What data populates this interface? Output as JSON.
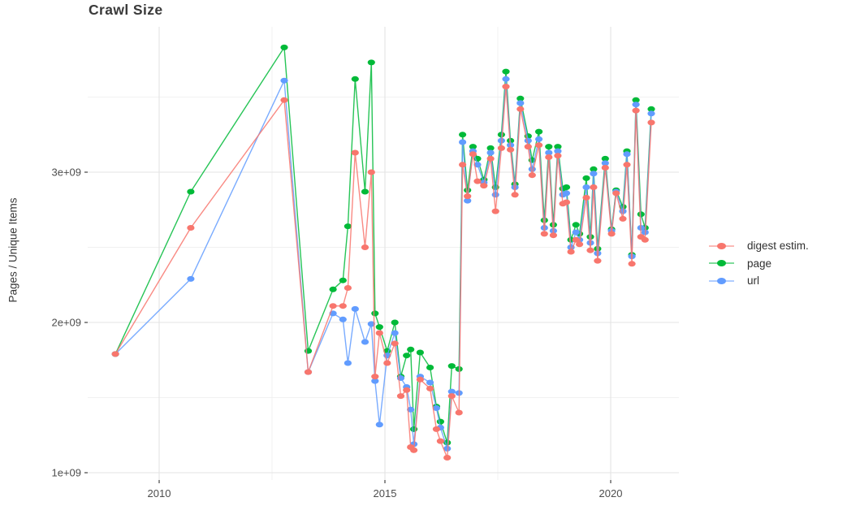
{
  "title": "Crawl Size",
  "axes": {
    "y_label": "Pages / Unique Items",
    "y_tick_labels": [
      "1e+09",
      "2e+09",
      "3e+09"
    ],
    "y_tick_values_billions": [
      1,
      2,
      3
    ],
    "y_minor_values_billions": [
      1.5,
      2.5,
      3.5
    ],
    "x_tick_labels": [
      "2010",
      "2015",
      "2020"
    ],
    "x_tick_values": [
      2010,
      2015,
      2020
    ],
    "x_minor_values": [
      2012.5,
      2017.5
    ]
  },
  "legend": {
    "position": "right",
    "items": [
      {
        "label": "digest estim.",
        "color": "#F8766D"
      },
      {
        "label": "page",
        "color": "#00BA38"
      },
      {
        "label": "url",
        "color": "#619CFF"
      }
    ]
  },
  "colors": {
    "background": "#ffffff",
    "grid_major": "#e3e3e3",
    "grid_minor": "#f1f1f1",
    "tick_mark": "#333333",
    "tick_text": "#4d4d4d",
    "title_text": "#3a3a3a",
    "digest": "#F8766D",
    "page": "#00BA38",
    "url": "#619CFF"
  },
  "chart_data": {
    "type": "line",
    "title": "Crawl Size",
    "xlabel": "",
    "ylabel": "Pages / Unique Items",
    "x_unit": "year (decimal)",
    "y_unit": "count, billions (1e9)",
    "xlim": [
      2008.4,
      2021.5
    ],
    "ylim_billions": [
      0.95,
      3.97
    ],
    "grid": true,
    "legend_position": "right",
    "marker": "ellipse-dot",
    "x": [
      2009.03,
      2010.7,
      2012.77,
      2013.3,
      2013.85,
      2014.07,
      2014.18,
      2014.34,
      2014.56,
      2014.7,
      2014.78,
      2014.88,
      2015.05,
      2015.22,
      2015.35,
      2015.48,
      2015.57,
      2015.64,
      2015.78,
      2016.0,
      2016.14,
      2016.23,
      2016.38,
      2016.48,
      2016.64,
      2016.72,
      2016.83,
      2016.95,
      2017.05,
      2017.19,
      2017.34,
      2017.45,
      2017.58,
      2017.68,
      2017.78,
      2017.88,
      2018.0,
      2018.17,
      2018.26,
      2018.41,
      2018.53,
      2018.63,
      2018.73,
      2018.83,
      2018.94,
      2019.02,
      2019.12,
      2019.23,
      2019.31,
      2019.46,
      2019.55,
      2019.62,
      2019.71,
      2019.88,
      2020.02,
      2020.12,
      2020.27,
      2020.36,
      2020.47,
      2020.56,
      2020.67,
      2020.76,
      2020.9
    ],
    "series": [
      {
        "name": "digest estim.",
        "color": "#F8766D",
        "values_billions": [
          1.79,
          2.63,
          3.48,
          1.67,
          2.11,
          2.11,
          2.23,
          3.13,
          2.5,
          3.0,
          1.64,
          1.93,
          1.73,
          1.86,
          1.51,
          1.55,
          1.17,
          1.15,
          1.62,
          1.56,
          1.29,
          1.21,
          1.1,
          1.51,
          1.4,
          3.05,
          2.84,
          3.12,
          2.94,
          2.91,
          3.09,
          2.74,
          3.16,
          3.57,
          3.15,
          2.85,
          3.42,
          3.17,
          2.98,
          3.18,
          2.59,
          3.1,
          2.58,
          3.11,
          2.79,
          2.8,
          2.47,
          2.55,
          2.52,
          2.83,
          2.48,
          2.9,
          2.41,
          3.03,
          2.59,
          2.86,
          2.69,
          3.05,
          2.39,
          3.41,
          2.57,
          2.55,
          3.33
        ]
      },
      {
        "name": "page",
        "color": "#00BA38",
        "values_billions": [
          1.79,
          2.87,
          3.83,
          1.81,
          2.22,
          2.28,
          2.64,
          3.62,
          2.87,
          3.73,
          2.06,
          1.97,
          1.81,
          2.0,
          1.64,
          1.78,
          1.82,
          1.29,
          1.8,
          1.7,
          1.44,
          1.34,
          1.2,
          1.71,
          1.69,
          3.25,
          2.88,
          3.17,
          3.09,
          2.95,
          3.16,
          2.9,
          3.25,
          3.67,
          3.21,
          2.92,
          3.49,
          3.24,
          3.08,
          3.27,
          2.68,
          3.17,
          2.65,
          3.17,
          2.89,
          2.9,
          2.55,
          2.65,
          2.59,
          2.96,
          2.57,
          3.02,
          2.49,
          3.09,
          2.62,
          2.88,
          2.77,
          3.14,
          2.45,
          3.48,
          2.72,
          2.63,
          3.42
        ]
      },
      {
        "name": "url",
        "color": "#619CFF",
        "values_billions": [
          1.79,
          2.29,
          3.61,
          1.67,
          2.06,
          2.02,
          1.73,
          2.09,
          1.87,
          1.99,
          1.61,
          1.32,
          1.78,
          1.93,
          1.63,
          1.57,
          1.42,
          1.19,
          1.64,
          1.6,
          1.43,
          1.3,
          1.16,
          1.54,
          1.53,
          3.2,
          2.81,
          3.14,
          3.05,
          2.93,
          3.13,
          2.85,
          3.21,
          3.62,
          3.18,
          2.9,
          3.46,
          3.21,
          3.02,
          3.22,
          2.63,
          3.13,
          2.61,
          3.14,
          2.85,
          2.86,
          2.5,
          2.6,
          2.55,
          2.9,
          2.53,
          2.99,
          2.46,
          3.06,
          2.61,
          2.87,
          2.74,
          3.12,
          2.44,
          3.45,
          2.63,
          2.6,
          3.39
        ]
      }
    ]
  }
}
